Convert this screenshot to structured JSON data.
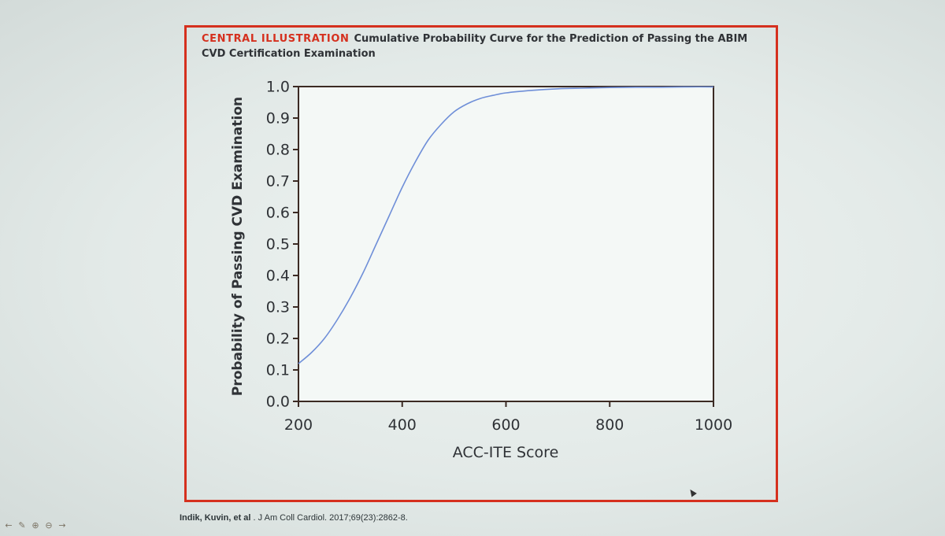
{
  "slide": {
    "heading_lead": "CENTRAL ILLUSTRATION",
    "heading_title": "Cumulative Probability Curve for the Prediction of Passing the ABIM CVD Certification Examination",
    "citation_authors": "Indik, Kuvin, et al",
    "citation_dot": ".",
    "citation_journal": "J Am Coll Cardiol. 2017;69(23):2862-8."
  },
  "navigation": {
    "items": [
      {
        "name": "nav-prev-icon",
        "glyph": "←"
      },
      {
        "name": "pen-tool-icon",
        "glyph": "✎"
      },
      {
        "name": "zoom-in-icon",
        "glyph": "⊕"
      },
      {
        "name": "zoom-out-icon",
        "glyph": "⊖"
      },
      {
        "name": "nav-next-icon",
        "glyph": "→"
      }
    ]
  },
  "colors": {
    "frame": "#d5301e",
    "curve": "#6f8fd8",
    "axis": "#3b2a23",
    "text": "#2f3236",
    "plot_bg": "#f4f8f6"
  },
  "chart_data": {
    "type": "line",
    "title": "",
    "xlabel": "ACC-ITE Score",
    "ylabel": "Probability of Passing CVD Examination",
    "xlim": [
      200,
      1000
    ],
    "ylim": [
      0,
      1
    ],
    "x_ticks": [
      "200",
      "400",
      "600",
      "800",
      "1000"
    ],
    "y_ticks": [
      "0.0",
      "0.1",
      "0.2",
      "0.3",
      "0.4",
      "0.5",
      "0.6",
      "0.7",
      "0.8",
      "0.9",
      "1.0"
    ],
    "grid": false,
    "legend": "none",
    "series": [
      {
        "x": [
          200,
          225,
          250,
          275,
          300,
          325,
          350,
          375,
          400,
          425,
          450,
          475,
          500,
          525,
          550,
          575,
          600,
          650,
          700,
          750,
          800,
          850,
          900,
          950,
          1000
        ],
        "y": [
          0.12,
          0.155,
          0.2,
          0.26,
          0.33,
          0.41,
          0.5,
          0.59,
          0.68,
          0.76,
          0.83,
          0.88,
          0.92,
          0.945,
          0.962,
          0.972,
          0.98,
          0.988,
          0.993,
          0.995,
          0.997,
          0.998,
          0.998,
          0.999,
          0.999
        ]
      }
    ]
  }
}
